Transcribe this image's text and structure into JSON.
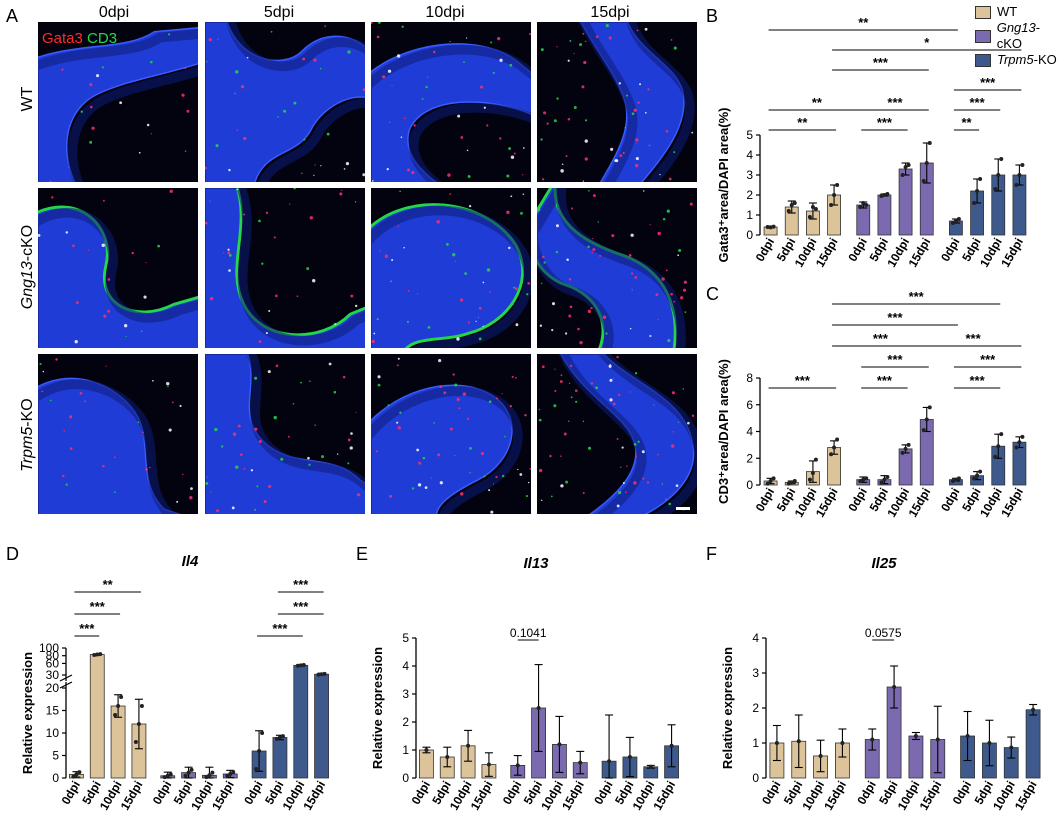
{
  "panel_a": {
    "letter": "A",
    "stain_labels": [
      {
        "text": "Gata3",
        "color": "#ff2a2a"
      },
      {
        "text": "CD3",
        "color": "#22dd44"
      }
    ],
    "columns": [
      "0dpi",
      "5dpi",
      "10dpi",
      "15dpi"
    ],
    "rows": [
      {
        "prefix": "WT",
        "gene": "",
        "suffix": ""
      },
      {
        "prefix": "",
        "gene": "Gng13",
        "suffix": "-cKO"
      },
      {
        "prefix": "",
        "gene": "Trpm5",
        "suffix": "-KO"
      }
    ]
  },
  "legend": [
    {
      "label_italic": "",
      "label": "WT",
      "color": "#dcc39a"
    },
    {
      "label_italic": "Gng13",
      "label": "-cKO",
      "color": "#7b6ab0"
    },
    {
      "label_italic": "Trpm5",
      "label": "-KO",
      "color": "#3e5a8c"
    }
  ],
  "colors": {
    "wt": "#dcc39a",
    "gng13": "#7b6ab0",
    "trpm5": "#3e5a8c",
    "epithelium": "#1f3cd6",
    "green": "#25d64a",
    "red": "#ff2f6a"
  },
  "chart_data": [
    {
      "id": "B",
      "letter": "B",
      "type": "bar",
      "title": "",
      "ylabel": "Gata3⁺area/DAPI area(%)",
      "ylim": [
        0,
        5
      ],
      "yticks": [
        "0",
        "1",
        "2",
        "3",
        "4",
        "5"
      ],
      "categories": [
        "0dpi",
        "5dpi",
        "10dpi",
        "15dpi",
        "0dpi",
        "5dpi",
        "10dpi",
        "15dpi",
        "0dpi",
        "5dpi",
        "10dpi",
        "15dpi"
      ],
      "groups": [
        "wt",
        "wt",
        "wt",
        "wt",
        "gng13",
        "gng13",
        "gng13",
        "gng13",
        "trpm5",
        "trpm5",
        "trpm5",
        "trpm5"
      ],
      "values": [
        0.4,
        1.4,
        1.2,
        2.0,
        1.5,
        2.0,
        3.3,
        3.6,
        0.7,
        2.2,
        3.0,
        3.0
      ],
      "errors": [
        0.05,
        0.3,
        0.4,
        0.5,
        0.15,
        0.05,
        0.3,
        1.0,
        0.1,
        0.6,
        0.8,
        0.5
      ],
      "points": [
        [
          0.4,
          0.38,
          0.42
        ],
        [
          1.2,
          1.5,
          1.6
        ],
        [
          0.9,
          1.4,
          1.3
        ],
        [
          1.5,
          2.0,
          2.5
        ],
        [
          1.4,
          1.6,
          1.5
        ],
        [
          1.95,
          2.0,
          2.05
        ],
        [
          3.0,
          3.4,
          3.5
        ],
        [
          2.7,
          3.6,
          4.6
        ],
        [
          0.6,
          0.7,
          0.8
        ],
        [
          1.6,
          2.2,
          2.8
        ],
        [
          2.3,
          3.0,
          3.8
        ],
        [
          2.5,
          3.0,
          3.5
        ]
      ],
      "brackets": [
        {
          "a": 0,
          "b": 3,
          "level": 1,
          "label": "**"
        },
        {
          "a": 0,
          "b": 4,
          "level": 2,
          "label": "**"
        },
        {
          "a": 4,
          "b": 7,
          "level": 2,
          "label": "***"
        },
        {
          "a": 4,
          "b": 6,
          "level": 1,
          "label": "***"
        },
        {
          "a": 8,
          "b": 9,
          "level": 1,
          "label": "**"
        },
        {
          "a": 8,
          "b": 10,
          "level": 2,
          "label": "***"
        },
        {
          "a": 8,
          "b": 11,
          "level": 3,
          "label": "***"
        },
        {
          "a": 3,
          "b": 7,
          "level": 4,
          "label": "***"
        },
        {
          "a": 3,
          "b": 11,
          "level": 5,
          "label": "*"
        },
        {
          "a": 0,
          "b": 8,
          "level": 6,
          "label": "**"
        }
      ]
    },
    {
      "id": "C",
      "letter": "C",
      "type": "bar",
      "title": "",
      "ylabel": "CD3⁺area/DAPI area(%)",
      "ylim": [
        0,
        8
      ],
      "yticks": [
        "0",
        "2",
        "4",
        "6",
        "8"
      ],
      "categories": [
        "0dpi",
        "5dpi",
        "10dpi",
        "15dpi",
        "0dpi",
        "5dpi",
        "10dpi",
        "15dpi",
        "0dpi",
        "5dpi",
        "10dpi",
        "15dpi"
      ],
      "groups": [
        "wt",
        "wt",
        "wt",
        "wt",
        "gng13",
        "gng13",
        "gng13",
        "gng13",
        "trpm5",
        "trpm5",
        "trpm5",
        "trpm5"
      ],
      "values": [
        0.3,
        0.2,
        1.0,
        2.8,
        0.4,
        0.4,
        2.7,
        4.9,
        0.4,
        0.7,
        2.9,
        3.2
      ],
      "errors": [
        0.2,
        0.1,
        0.8,
        0.5,
        0.2,
        0.3,
        0.3,
        0.9,
        0.1,
        0.3,
        0.9,
        0.4
      ],
      "points": [
        [
          0.1,
          0.3,
          0.5
        ],
        [
          0.1,
          0.2,
          0.3
        ],
        [
          0.4,
          0.9,
          1.9
        ],
        [
          2.3,
          2.8,
          3.4
        ],
        [
          0.3,
          0.4,
          0.5
        ],
        [
          0.2,
          0.4,
          0.6
        ],
        [
          2.4,
          2.7,
          3.0
        ],
        [
          4.1,
          4.9,
          5.8
        ],
        [
          0.3,
          0.4,
          0.5
        ],
        [
          0.5,
          0.7,
          1.0
        ],
        [
          2.1,
          2.9,
          3.8
        ],
        [
          2.8,
          3.2,
          3.6
        ]
      ],
      "brackets": [
        {
          "a": 0,
          "b": 3,
          "level": 1,
          "label": "***"
        },
        {
          "a": 4,
          "b": 6,
          "level": 1,
          "label": "***"
        },
        {
          "a": 4,
          "b": 7,
          "level": 2,
          "label": "***"
        },
        {
          "a": 8,
          "b": 10,
          "level": 1,
          "label": "***"
        },
        {
          "a": 8,
          "b": 11,
          "level": 2,
          "label": "***"
        },
        {
          "a": 3,
          "b": 7,
          "level": 3,
          "label": "***"
        },
        {
          "a": 7,
          "b": 11,
          "level": 3,
          "label": "***"
        },
        {
          "a": 3,
          "b": 8,
          "level": 4,
          "label": "***"
        },
        {
          "a": 3,
          "b": 10,
          "level": 5,
          "label": "***"
        }
      ]
    },
    {
      "id": "D",
      "letter": "D",
      "type": "bar",
      "title": "Il4",
      "ylabel": "Relative expression",
      "axis_break": true,
      "lower_ylim": [
        0,
        20
      ],
      "lower_yticks": [
        "0",
        "5",
        "10",
        "15",
        "20"
      ],
      "upper_ylim": [
        30,
        100
      ],
      "upper_yticks": [
        "30",
        "60",
        "80",
        "100"
      ],
      "categories": [
        "0dpi",
        "5dpi",
        "10dpi",
        "15dpi",
        "0dpi",
        "5dpi",
        "10dpi",
        "15dpi",
        "0dpi",
        "5dpi",
        "10dpi",
        "15dpi"
      ],
      "groups": [
        "wt",
        "wt",
        "wt",
        "wt",
        "gng13",
        "gng13",
        "gng13",
        "gng13",
        "trpm5",
        "trpm5",
        "trpm5",
        "trpm5"
      ],
      "values": [
        0.8,
        83,
        16,
        12,
        0.5,
        1.2,
        0.6,
        0.9,
        6,
        9,
        55,
        32
      ],
      "errors": [
        0.6,
        1.5,
        2.5,
        5.5,
        0.8,
        1.2,
        1.8,
        0.8,
        4.5,
        0.5,
        1.5,
        2.5
      ],
      "points": [
        [
          0.3,
          0.8,
          1.3
        ],
        [
          82,
          83,
          84
        ],
        [
          14,
          16,
          18
        ],
        [
          8,
          12,
          16
        ],
        [
          0.2,
          0.5,
          0.8
        ],
        [
          0.5,
          1.2,
          1.8
        ],
        [
          0.2,
          0.6,
          1.2
        ],
        [
          0.5,
          0.9,
          1.3
        ],
        [
          2,
          6,
          10
        ],
        [
          8.7,
          9,
          9.3
        ],
        [
          54,
          55,
          56
        ],
        [
          31,
          32,
          33
        ]
      ],
      "brackets": [
        {
          "a": 0,
          "b": 1,
          "level": 1,
          "label": "***"
        },
        {
          "a": 0,
          "b": 2,
          "level": 2,
          "label": "***"
        },
        {
          "a": 0,
          "b": 3,
          "level": 3,
          "label": "**"
        },
        {
          "a": 8,
          "b": 10,
          "level": 1,
          "label": "***"
        },
        {
          "a": 9,
          "b": 11,
          "level": 2,
          "label": "***"
        },
        {
          "a": 9,
          "b": 11,
          "level": 3,
          "label": "***"
        }
      ]
    },
    {
      "id": "E",
      "letter": "E",
      "type": "bar",
      "title": "Il13",
      "ylabel": "Relative expression",
      "ylim": [
        0,
        5
      ],
      "yticks": [
        "0",
        "1",
        "2",
        "3",
        "4",
        "5"
      ],
      "categories": [
        "0dpi",
        "5dpi",
        "10dpi",
        "15dpi",
        "0dpi",
        "5dpi",
        "10dpi",
        "15dpi",
        "0dpi",
        "5dpi",
        "10dpi",
        "15dpi"
      ],
      "groups": [
        "wt",
        "wt",
        "wt",
        "wt",
        "gng13",
        "gng13",
        "gng13",
        "gng13",
        "trpm5",
        "trpm5",
        "trpm5",
        "trpm5"
      ],
      "values": [
        1.0,
        0.75,
        1.15,
        0.48,
        0.45,
        2.5,
        1.2,
        0.55,
        0.6,
        0.75,
        0.4,
        1.15
      ],
      "errors": [
        0.1,
        0.35,
        0.55,
        0.42,
        0.35,
        1.55,
        1.0,
        0.4,
        1.65,
        0.7,
        0.05,
        0.75
      ],
      "points": [
        [
          1.0
        ],
        [
          0.75
        ],
        [
          1.15
        ],
        [
          0.48
        ],
        [
          0.45
        ],
        [
          2.5
        ],
        [
          1.2
        ],
        [
          0.55
        ],
        [
          0.6
        ],
        [
          0.75
        ],
        [
          0.4
        ],
        [
          1.15
        ]
      ],
      "brackets": [
        {
          "a": 4,
          "b": 5,
          "level": 1,
          "label": "0.1041",
          "plain": true
        }
      ]
    },
    {
      "id": "F",
      "letter": "F",
      "type": "bar",
      "title": "Il25",
      "ylabel": "Relative expression",
      "ylim": [
        0,
        4
      ],
      "yticks": [
        "0",
        "1",
        "2",
        "3",
        "4"
      ],
      "categories": [
        "0dpi",
        "5dpi",
        "10dpi",
        "15dpi",
        "0dpi",
        "5dpi",
        "10dpi",
        "15dpi",
        "0dpi",
        "5dpi",
        "10dpi",
        "15dpi"
      ],
      "groups": [
        "wt",
        "wt",
        "wt",
        "wt",
        "gng13",
        "gng13",
        "gng13",
        "gng13",
        "trpm5",
        "trpm5",
        "trpm5",
        "trpm5"
      ],
      "values": [
        1.0,
        1.05,
        0.63,
        1.0,
        1.1,
        2.6,
        1.2,
        1.1,
        1.2,
        1.0,
        0.87,
        1.95
      ],
      "errors": [
        0.5,
        0.75,
        0.45,
        0.4,
        0.3,
        0.6,
        0.1,
        0.95,
        0.7,
        0.65,
        0.3,
        0.15
      ],
      "points": [
        [
          1.0
        ],
        [
          1.05
        ],
        [
          0.63
        ],
        [
          1.0
        ],
        [
          1.1
        ],
        [
          2.6
        ],
        [
          1.2
        ],
        [
          1.1
        ],
        [
          1.2
        ],
        [
          1.0
        ],
        [
          0.87
        ],
        [
          1.95
        ]
      ],
      "brackets": [
        {
          "a": 4,
          "b": 5,
          "level": 1,
          "label": "0.0575",
          "plain": true
        }
      ]
    }
  ]
}
